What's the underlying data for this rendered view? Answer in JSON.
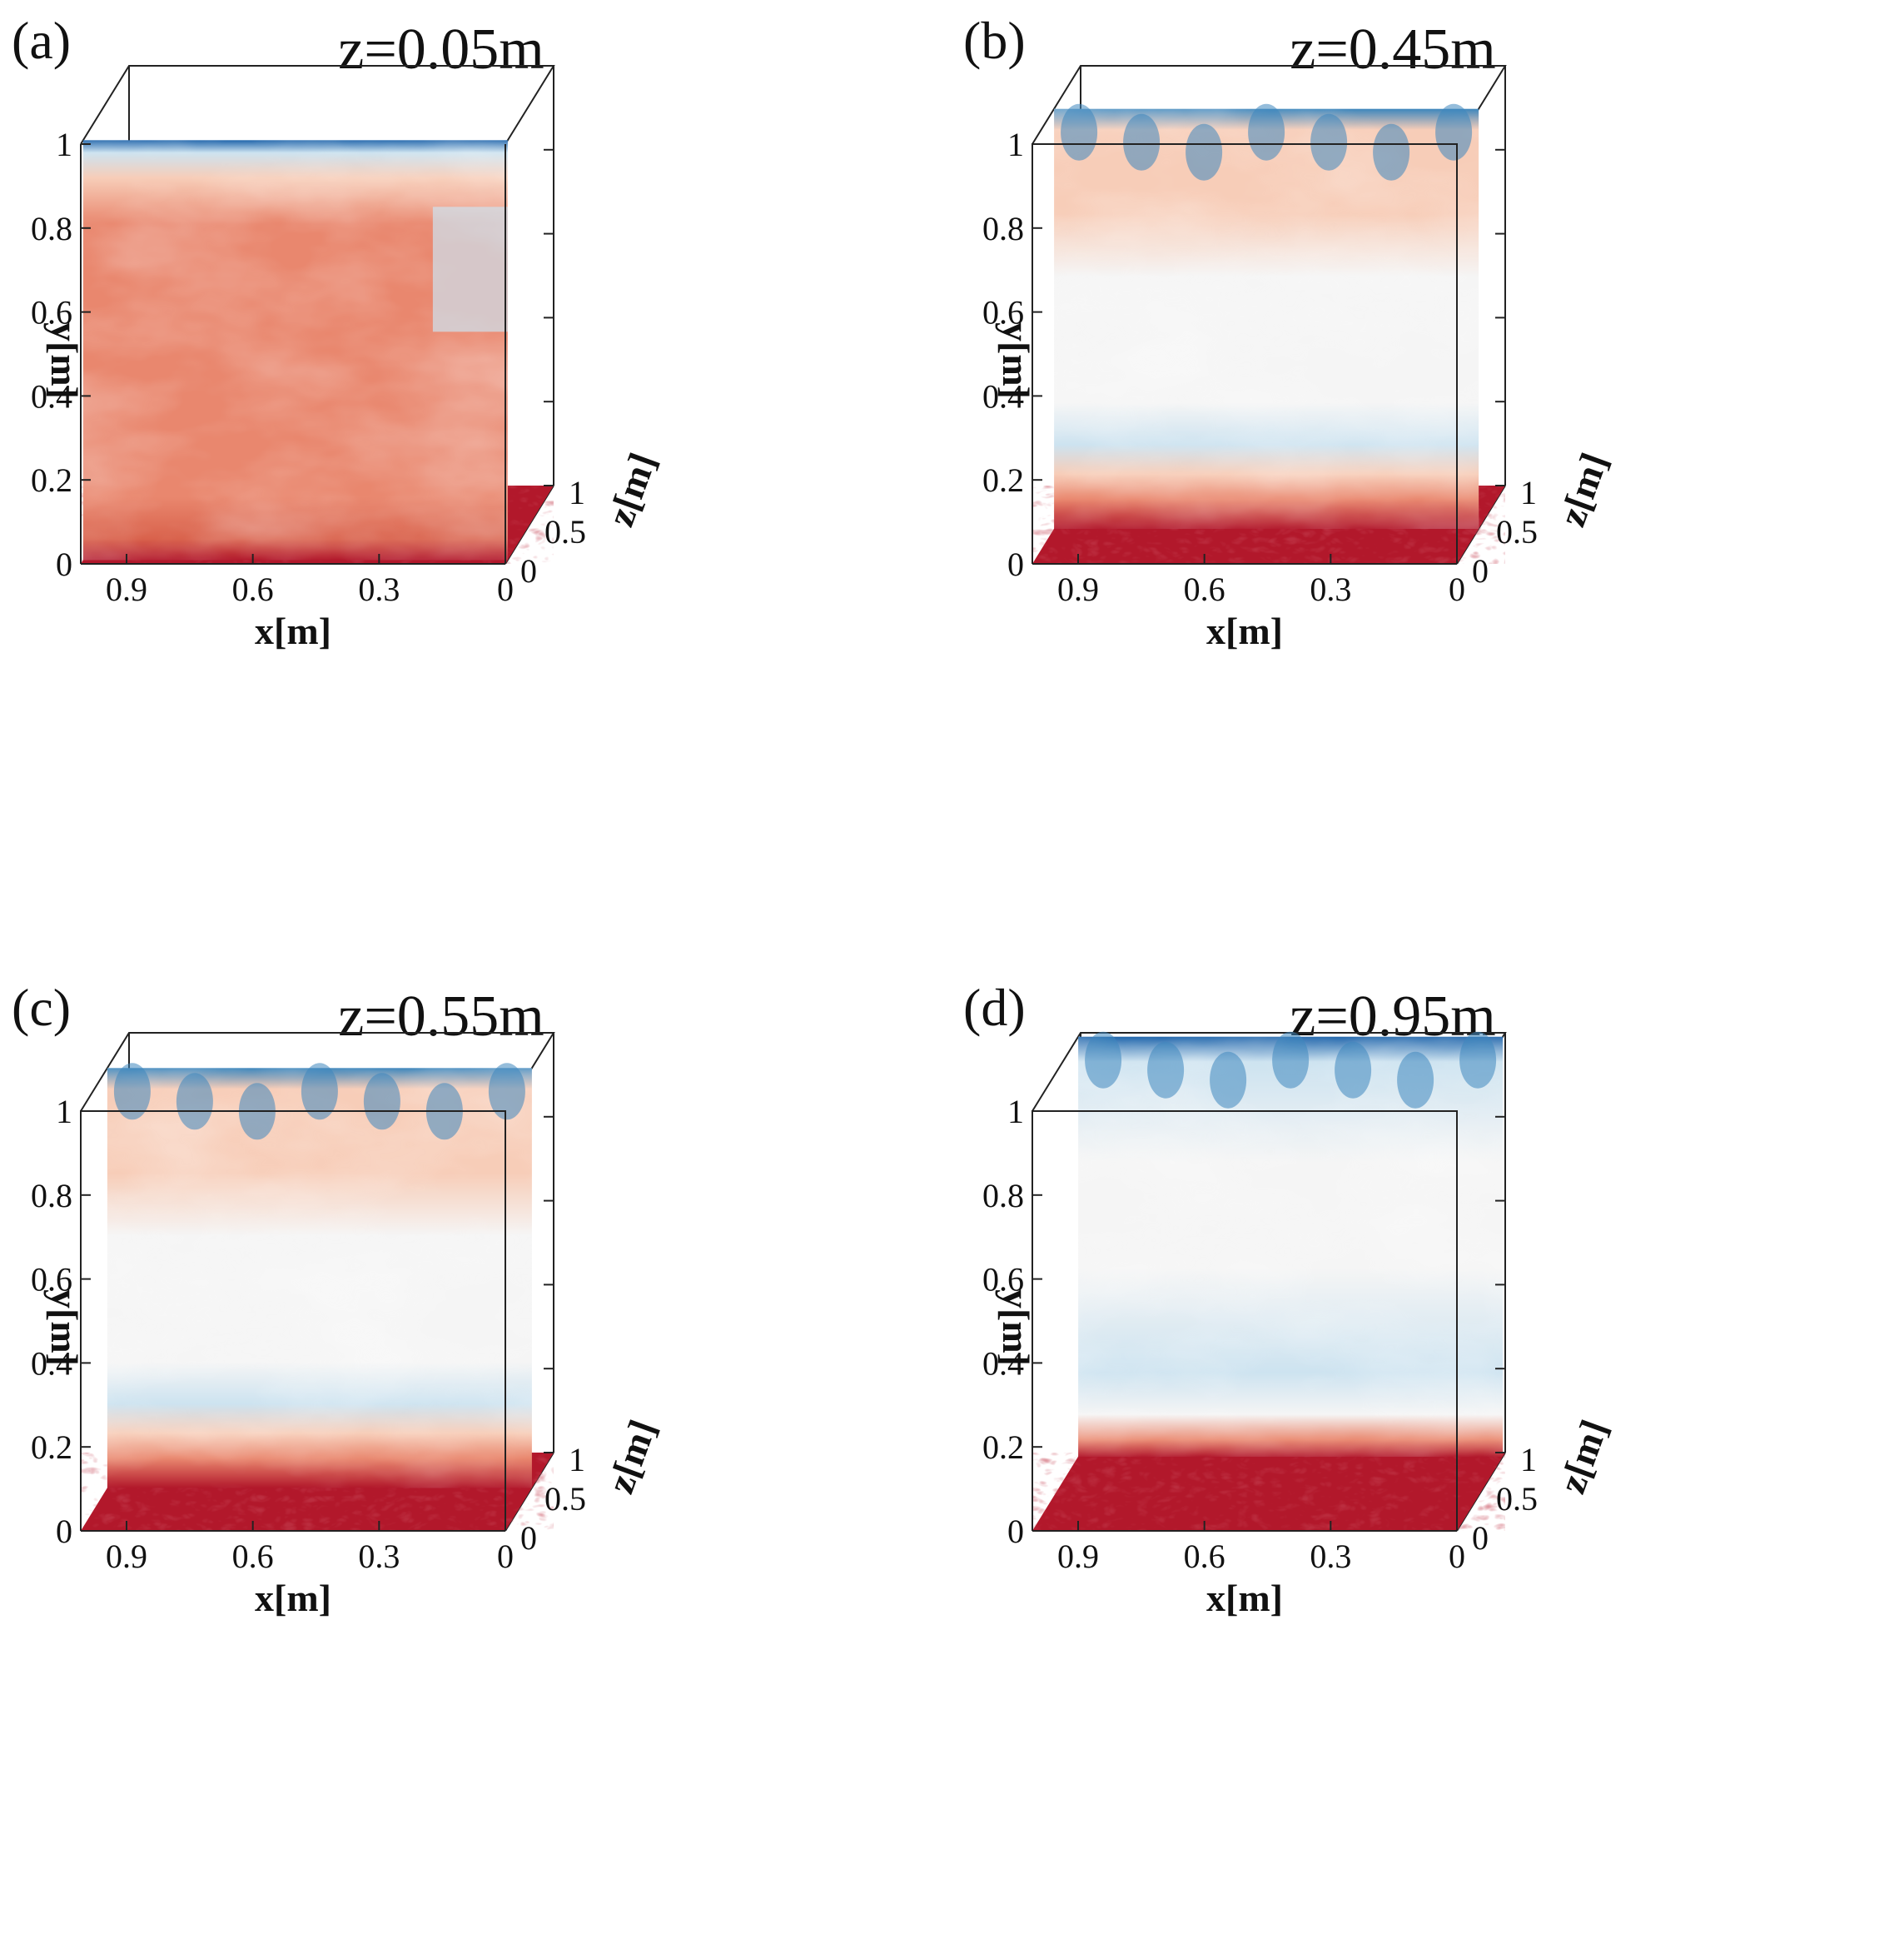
{
  "figure": {
    "panels": [
      {
        "label": "(a)",
        "title": "z=0.05m",
        "variant": "a"
      },
      {
        "label": "(b)",
        "title": "z=0.45m",
        "variant": "b"
      },
      {
        "label": "(c)",
        "title": "z=0.55m",
        "variant": "c"
      },
      {
        "label": "(d)",
        "title": "z=0.95m",
        "variant": "d"
      }
    ],
    "axes": {
      "x_label": "x[m]",
      "y_label": "y[m]",
      "z_label": "z[m]",
      "x_ticks": [
        "0.9",
        "0.6",
        "0.3",
        "0"
      ],
      "y_ticks": [
        "1",
        "0.8",
        "0.6",
        "0.4",
        "0.2",
        "0"
      ],
      "z_ticks": [
        "1",
        "0.5",
        "0"
      ]
    },
    "colors": {
      "warm_dark": "#b2182b",
      "warm": "#e9876e",
      "warm_light": "#f7cdb8",
      "neutral": "#f5f5f5",
      "cool_light": "#cde3f0",
      "cool": "#3e87bd",
      "cool_dark": "#2166ac"
    }
  }
}
